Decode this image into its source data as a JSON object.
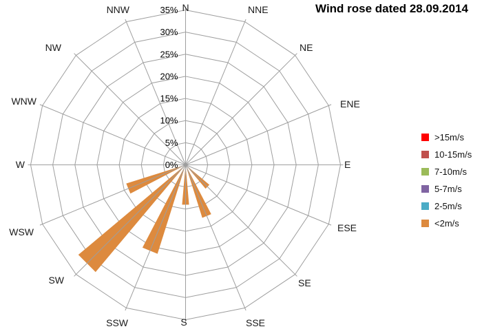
{
  "title": "Wind rose dated 28.09.2014",
  "chart_data": {
    "type": "polar-bar-wind-rose",
    "title": "Wind rose dated 28.09.2014",
    "directions": [
      "N",
      "NNE",
      "NE",
      "ENE",
      "E",
      "ESE",
      "SE",
      "SSE",
      "S",
      "SSW",
      "SW",
      "WSW",
      "W",
      "WNW",
      "NW",
      "NNW"
    ],
    "radial_axis": {
      "unit": "%",
      "min": 0,
      "max": 35,
      "step": 5
    },
    "radial_ticks": [
      "0%",
      "5%",
      "10%",
      "15%",
      "20%",
      "25%",
      "30%",
      "35%"
    ],
    "grid": true,
    "legend_position": "right",
    "series": [
      {
        "name": ">15m/s",
        "color": "#FF0000",
        "values": [
          0,
          0,
          0,
          0,
          0,
          0,
          0,
          0,
          0,
          0,
          0,
          0,
          0,
          0,
          0,
          0
        ]
      },
      {
        "name": "10-15m/s",
        "color": "#C0504D",
        "values": [
          0,
          0,
          0,
          0,
          0,
          0,
          0,
          0,
          0,
          0,
          0,
          0,
          0,
          0,
          0,
          0
        ]
      },
      {
        "name": "7-10m/s",
        "color": "#9BBB59",
        "values": [
          0,
          0,
          0,
          0,
          0,
          0,
          0,
          0,
          0,
          0,
          0,
          0,
          0,
          0,
          0,
          0
        ]
      },
      {
        "name": "5-7m/s",
        "color": "#8064A2",
        "values": [
          0,
          0,
          0,
          0,
          0,
          0,
          0,
          0,
          0,
          0,
          0,
          0,
          0,
          0,
          0,
          0
        ]
      },
      {
        "name": "2-5m/s",
        "color": "#4BACC6",
        "values": [
          0,
          0,
          0,
          0,
          0,
          0,
          0,
          0,
          0,
          0,
          0,
          0,
          0,
          0,
          0,
          0
        ]
      },
      {
        "name": "<2m/s",
        "color": "#DD8A3E",
        "values": [
          0,
          0,
          0,
          0,
          0,
          0,
          7,
          12.5,
          9,
          21,
          31.5,
          14,
          0,
          0,
          0,
          0
        ]
      }
    ]
  },
  "colors": {
    "grid": "#9E9E9E",
    "text": "#1A1A1A",
    "background": "#FFFFFF"
  }
}
